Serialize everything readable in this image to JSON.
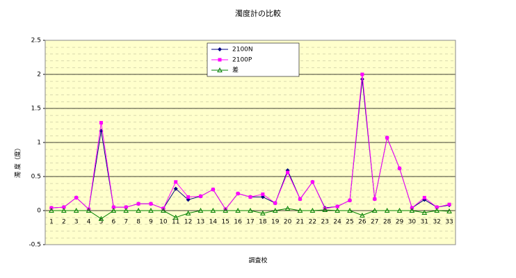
{
  "chart_data": {
    "type": "line",
    "title": "濁度計の比較",
    "x_label": "調査校",
    "y_label": "濁 度（度）",
    "categories": [
      "1",
      "2",
      "3",
      "4",
      "5",
      "6",
      "7",
      "8",
      "9",
      "10",
      "11",
      "12",
      "13",
      "14",
      "15",
      "16",
      "17",
      "18",
      "19",
      "20",
      "21",
      "22",
      "23",
      "24",
      "25",
      "26",
      "27",
      "28",
      "29",
      "30",
      "31",
      "32",
      "33"
    ],
    "series": [
      {
        "name": "2100N",
        "color": "#000080",
        "marker": "diamond",
        "values": [
          0.04,
          0.05,
          0.19,
          0.02,
          1.17,
          0.05,
          0.05,
          0.1,
          0.1,
          0.03,
          0.32,
          0.16,
          0.21,
          0.31,
          0.02,
          0.25,
          0.2,
          0.2,
          0.11,
          0.59,
          0.17,
          0.42,
          0.04,
          0.06,
          0.15,
          1.93,
          0.17,
          1.07,
          0.62,
          0.04,
          0.16,
          0.05,
          0.08
        ]
      },
      {
        "name": "2100P",
        "color": "#ff00ff",
        "marker": "square",
        "values": [
          0.04,
          0.05,
          0.19,
          0.02,
          1.29,
          0.05,
          0.05,
          0.1,
          0.1,
          0.03,
          0.42,
          0.2,
          0.21,
          0.31,
          0.02,
          0.25,
          0.2,
          0.24,
          0.11,
          0.56,
          0.17,
          0.42,
          0.03,
          0.06,
          0.15,
          2.0,
          0.17,
          1.07,
          0.62,
          0.04,
          0.19,
          0.05,
          0.09
        ]
      },
      {
        "name": "差",
        "color": "#008000",
        "marker": "triangle",
        "values": [
          0,
          0,
          0,
          0,
          -0.12,
          0,
          0,
          0,
          0,
          0,
          -0.1,
          -0.04,
          0,
          0,
          0,
          0,
          0,
          -0.04,
          0,
          0.03,
          0,
          0,
          0.01,
          0,
          0,
          -0.07,
          0,
          0,
          0,
          0,
          -0.03,
          0,
          -0.01
        ]
      }
    ],
    "ylim": [
      -0.5,
      2.5
    ],
    "yticks": [
      -0.5,
      0,
      0.5,
      1,
      1.5,
      2,
      2.5
    ],
    "grid": true,
    "plot_background": "#ffffcc"
  }
}
